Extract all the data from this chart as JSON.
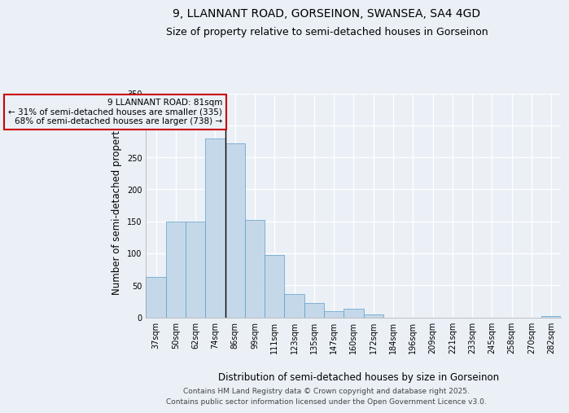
{
  "title_line1": "9, LLANNANT ROAD, GORSEINON, SWANSEA, SA4 4GD",
  "title_line2": "Size of property relative to semi-detached houses in Gorseinon",
  "xlabel": "Distribution of semi-detached houses by size in Gorseinon",
  "ylabel": "Number of semi-detached properties",
  "categories": [
    "37sqm",
    "50sqm",
    "62sqm",
    "74sqm",
    "86sqm",
    "99sqm",
    "111sqm",
    "123sqm",
    "135sqm",
    "147sqm",
    "160sqm",
    "172sqm",
    "184sqm",
    "196sqm",
    "209sqm",
    "221sqm",
    "233sqm",
    "245sqm",
    "258sqm",
    "270sqm",
    "282sqm"
  ],
  "values": [
    63,
    149,
    149,
    280,
    272,
    152,
    97,
    36,
    22,
    10,
    13,
    5,
    0,
    0,
    0,
    0,
    0,
    0,
    0,
    0,
    2
  ],
  "bar_color": "#c5d8ea",
  "bar_edge_color": "#5a9fc5",
  "background_color": "#eaf0f6",
  "grid_color": "#ffffff",
  "annotation_line1": "9 LLANNANT ROAD: 81sqm",
  "annotation_line2": "← 31% of semi-detached houses are smaller (335)",
  "annotation_line3": "68% of semi-detached houses are larger (738) →",
  "annotation_box_color": "#cc0000",
  "property_line_x": 3.5,
  "ylim": [
    0,
    350
  ],
  "yticks": [
    0,
    50,
    100,
    150,
    200,
    250,
    300,
    350
  ],
  "footer_line1": "Contains HM Land Registry data © Crown copyright and database right 2025.",
  "footer_line2": "Contains public sector information licensed under the Open Government Licence v3.0.",
  "title_fontsize": 10,
  "subtitle_fontsize": 9,
  "axis_label_fontsize": 8.5,
  "tick_fontsize": 7,
  "annotation_fontsize": 7.5,
  "footer_fontsize": 6.5
}
